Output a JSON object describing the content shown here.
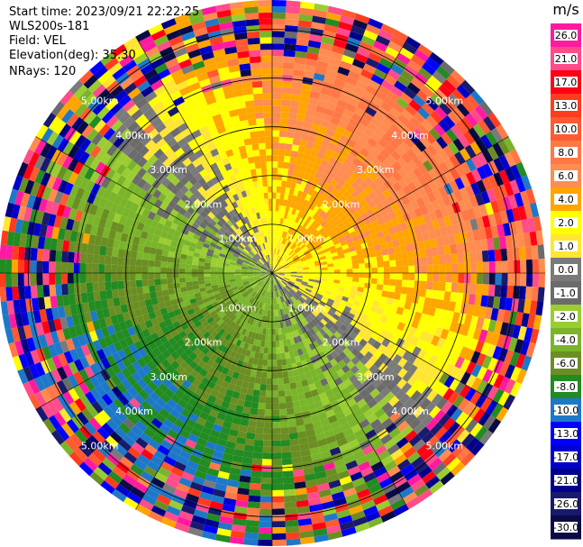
{
  "header": {
    "start_time": "Start time: 2023/09/21 22:22:25",
    "instrument": "WLS200s-181",
    "field": "Field: VEL",
    "elevation": "Elevation(deg): 35.30",
    "nrays": "NRays: 120"
  },
  "chart_data": {
    "type": "heatmap",
    "projection": "polar-ppi",
    "field": "VEL",
    "units": "m/s",
    "n_rays": 120,
    "elevation_deg": 35.3,
    "range_km": [
      0,
      5.6
    ],
    "range_rings_km": [
      1.0,
      2.0,
      3.0,
      4.0,
      5.0
    ],
    "ring_labels": [
      "1.00km",
      "2.00km",
      "3.00km",
      "4.00km",
      "5.00km"
    ],
    "azimuth_lines_deg": [
      0,
      30,
      60,
      90,
      120,
      150,
      180,
      210,
      240,
      270,
      300,
      330
    ],
    "dominant_pattern": {
      "northeast_quadrant": "positive (2 to 8 m/s, yellow/orange)",
      "southwest_quadrant": "negative (-2 to -10 m/s, green/blue)",
      "outer_range": "noisy (mixed colors beyond ~4.5 km)"
    },
    "colorbar": {
      "unit": "m/s",
      "ticks": [
        "26.0",
        "21.0",
        "17.0",
        "13.0",
        "10.0",
        "8.0",
        "6.0",
        "4.0",
        "2.0",
        "1.0",
        "0.0",
        "-1.0",
        "-2.0",
        "-4.0",
        "-6.0",
        "-8.0",
        "-10.0",
        "-13.0",
        "-17.0",
        "-21.0",
        "-26.0",
        "-30.0"
      ],
      "bins": [
        {
          "from": 26.0,
          "to": 30.0,
          "color": "#ff1aa0"
        },
        {
          "from": 21.0,
          "to": 26.0,
          "color": "#ff4c8a"
        },
        {
          "from": 17.0,
          "to": 21.0,
          "color": "#ff0014"
        },
        {
          "from": 13.0,
          "to": 17.0,
          "color": "#ff3c1e"
        },
        {
          "from": 10.0,
          "to": 13.0,
          "color": "#ff5a32"
        },
        {
          "from": 8.0,
          "to": 10.0,
          "color": "#ff7846"
        },
        {
          "from": 6.0,
          "to": 8.0,
          "color": "#ff8c50"
        },
        {
          "from": 4.0,
          "to": 6.0,
          "color": "#ffa500"
        },
        {
          "from": 2.0,
          "to": 4.0,
          "color": "#ffff00"
        },
        {
          "from": 1.0,
          "to": 2.0,
          "color": "#ffe632"
        },
        {
          "from": 0.0,
          "to": 1.0,
          "color": "#7a7a7a"
        },
        {
          "from": -1.0,
          "to": 0.0,
          "color": "#6b6b6b"
        },
        {
          "from": -2.0,
          "to": -1.0,
          "color": "#9acd32"
        },
        {
          "from": -4.0,
          "to": -2.0,
          "color": "#7ab42a"
        },
        {
          "from": -6.0,
          "to": -4.0,
          "color": "#6b8e23"
        },
        {
          "from": -8.0,
          "to": -6.0,
          "color": "#228b22"
        },
        {
          "from": -10.0,
          "to": -8.0,
          "color": "#1e78c8"
        },
        {
          "from": -13.0,
          "to": -10.0,
          "color": "#0000ff"
        },
        {
          "from": -17.0,
          "to": -13.0,
          "color": "#0000cd"
        },
        {
          "from": -21.0,
          "to": -17.0,
          "color": "#00008b"
        },
        {
          "from": -26.0,
          "to": -21.0,
          "color": "#19196e"
        },
        {
          "from": -30.0,
          "to": -26.0,
          "color": "#0a0a46"
        }
      ]
    }
  }
}
